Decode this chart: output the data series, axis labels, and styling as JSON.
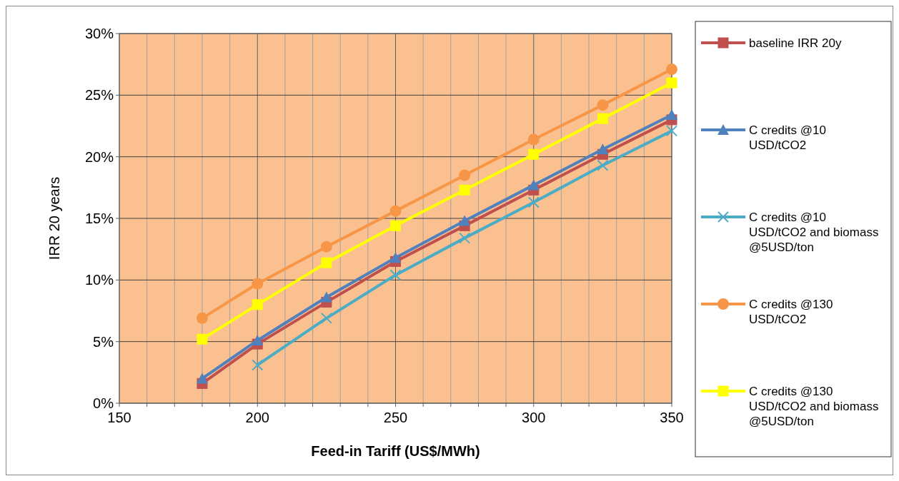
{
  "chart_data": {
    "type": "line",
    "xlabel": "Feed-in Tariff (US$/MWh)",
    "ylabel": "IRR 20 years",
    "x": [
      180,
      200,
      225,
      250,
      275,
      300,
      325,
      350
    ],
    "xlim": [
      150,
      350
    ],
    "xticks": [
      150,
      {
        "value": 160,
        "label": null
      },
      {
        "value": 170,
        "label": null
      },
      {
        "value": 180,
        "label": null
      },
      {
        "value": 190,
        "label": null
      },
      200,
      {
        "value": 210,
        "label": null
      },
      {
        "value": 220,
        "label": null
      },
      {
        "value": 230,
        "label": null
      },
      {
        "value": 240,
        "label": null
      },
      250,
      {
        "value": 260,
        "label": null
      },
      {
        "value": 270,
        "label": null
      },
      {
        "value": 280,
        "label": null
      },
      {
        "value": 290,
        "label": null
      },
      300,
      {
        "value": 310,
        "label": null
      },
      {
        "value": 320,
        "label": null
      },
      {
        "value": 330,
        "label": null
      },
      {
        "value": 340,
        "label": null
      },
      350
    ],
    "ylim": [
      0,
      30
    ],
    "yticks": [
      {
        "value": 0,
        "label": "0%"
      },
      {
        "value": 5,
        "label": "5%"
      },
      {
        "value": 10,
        "label": "10%"
      },
      {
        "value": 15,
        "label": "15%"
      },
      {
        "value": 20,
        "label": "20%"
      },
      {
        "value": 25,
        "label": "25%"
      },
      {
        "value": 30,
        "label": "30%"
      }
    ],
    "grid": true,
    "legend": "right",
    "series": [
      {
        "name": "baseline IRR 20y",
        "color": "#c0504d",
        "marker": "square",
        "values": [
          1.6,
          4.8,
          8.2,
          11.5,
          14.4,
          17.3,
          20.2,
          23.0
        ]
      },
      {
        "name": "C credits @10 USD/tCO2",
        "color": "#4f81bd",
        "marker": "triangle",
        "values": [
          2.0,
          5.1,
          8.6,
          11.8,
          14.8,
          17.7,
          20.6,
          23.4
        ]
      },
      {
        "name": "C credits @10 USD/tCO2 and biomass @5USD/ton",
        "color": "#4bacc6",
        "marker": "cross",
        "values": [
          null,
          3.1,
          6.9,
          10.4,
          13.4,
          16.3,
          19.3,
          22.1
        ]
      },
      {
        "name": "C credits @130 USD/tCO2",
        "color": "#f79646",
        "marker": "circle",
        "values": [
          6.9,
          9.7,
          12.7,
          15.6,
          18.5,
          21.4,
          24.2,
          27.1
        ]
      },
      {
        "name": "C credits @130 USD/tCO2 and biomass @5USD/ton",
        "color": "#ffff00",
        "marker": "square",
        "values": [
          5.2,
          8.0,
          11.4,
          14.4,
          17.3,
          20.2,
          23.1,
          26.0
        ]
      }
    ]
  }
}
